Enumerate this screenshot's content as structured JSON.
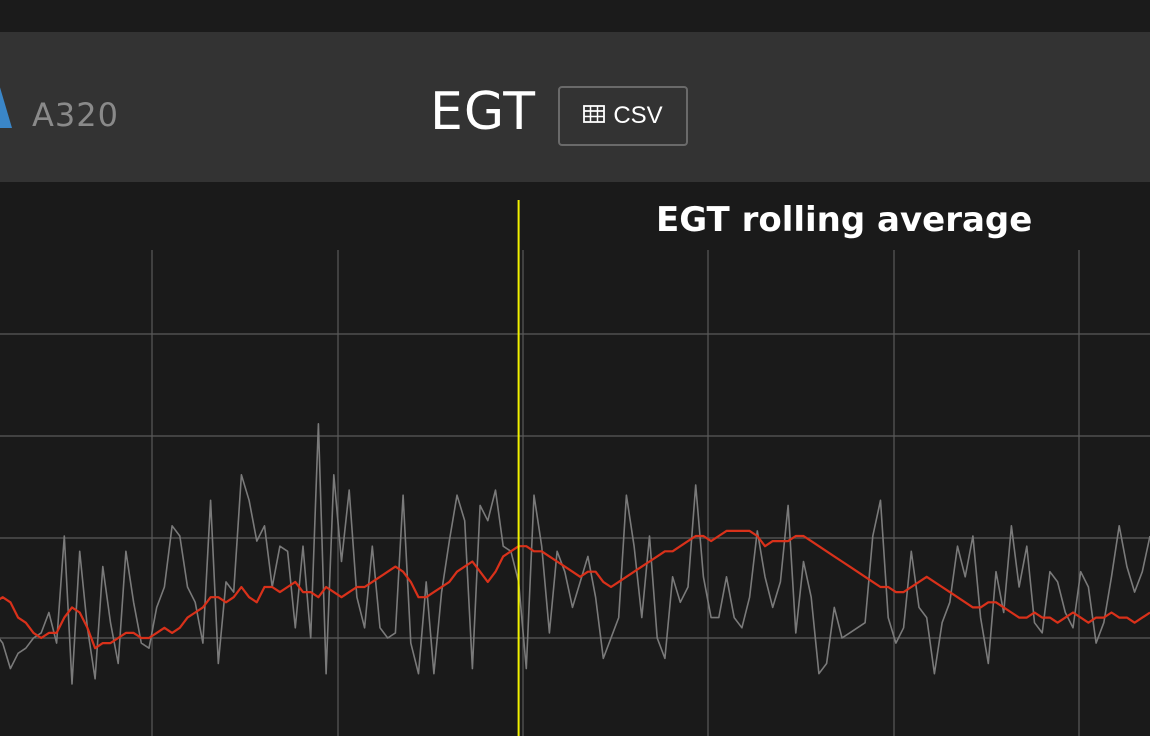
{
  "header": {
    "model": "A320",
    "title": "EGT",
    "csv_label": "CSV",
    "csv_icon": "table-icon"
  },
  "colors": {
    "background": "#1a1a1a",
    "header": "#333333",
    "brand": "#3a86c8",
    "raw_series": "#7a7a7a",
    "rolling_series": "#d9311a",
    "cursor": "#f2f200",
    "grid": "#5a5a5a"
  },
  "chart_data": {
    "type": "line",
    "title": "EGT rolling average",
    "grid": true,
    "x": [
      0,
      1,
      2,
      3,
      4,
      5,
      6,
      7,
      8,
      9,
      10,
      11,
      12,
      13,
      14,
      15,
      16,
      17,
      18,
      19,
      20,
      21,
      22,
      23,
      24,
      25,
      26,
      27,
      28,
      29,
      30,
      31,
      32,
      33,
      34,
      35,
      36,
      37,
      38,
      39,
      40,
      41,
      42,
      43,
      44,
      45,
      46,
      47,
      48,
      49,
      50,
      51,
      52,
      53,
      54,
      55,
      56,
      57,
      58,
      59,
      60,
      61,
      62,
      63,
      64,
      65,
      66,
      67,
      68,
      69,
      70,
      71,
      72,
      73,
      74,
      75,
      76,
      77,
      78,
      79,
      80,
      81,
      82,
      83,
      84,
      85,
      86,
      87,
      88,
      89,
      90,
      91,
      92,
      93,
      94,
      95,
      96,
      97,
      98,
      99,
      100,
      101,
      102,
      103,
      104,
      105,
      106,
      107,
      108,
      109,
      110,
      111,
      112,
      113,
      114,
      115,
      116,
      117,
      118,
      119,
      120,
      121,
      122,
      123,
      124,
      125,
      126,
      127,
      128,
      129,
      130,
      131,
      132,
      133,
      134,
      135,
      136,
      137,
      138,
      139,
      140,
      141,
      142,
      143,
      144,
      145,
      146,
      147,
      148,
      149,
      150
    ],
    "xlim": [
      0,
      150
    ],
    "ylim": [
      0,
      100
    ],
    "cursor_x": 68,
    "series": [
      {
        "values": [
          21,
          19,
          14,
          17,
          18,
          20,
          21,
          25,
          19,
          40,
          11,
          37,
          22,
          12,
          34,
          23,
          15,
          37,
          27,
          19,
          18,
          26,
          30,
          42,
          40,
          30,
          27,
          19,
          47,
          15,
          31,
          29,
          52,
          47,
          39,
          42,
          30,
          38,
          37,
          22,
          38,
          20,
          62,
          13,
          52,
          35,
          49,
          28,
          22,
          38,
          22,
          20,
          21,
          48,
          19,
          13,
          31,
          13,
          29,
          39,
          48,
          43,
          14,
          46,
          43,
          49,
          38,
          37,
          31,
          14,
          48,
          38,
          21,
          37,
          33,
          26,
          31,
          36,
          28,
          16,
          20,
          24,
          48,
          38,
          24,
          40,
          20,
          16,
          32,
          27,
          30,
          50,
          32,
          24,
          24,
          32,
          24,
          22,
          28,
          41,
          32,
          26,
          31,
          46,
          21,
          35,
          28,
          13,
          15,
          26,
          20,
          21,
          22,
          23,
          40,
          47,
          24,
          19,
          22,
          37,
          26,
          24,
          13,
          23,
          27,
          38,
          32,
          40,
          24,
          15,
          33,
          25,
          42,
          30,
          38,
          23,
          21,
          33,
          31,
          25,
          22,
          33,
          30,
          19,
          23,
          32,
          42,
          34,
          29,
          33,
          40
        ]
      },
      {
        "values": [
          27,
          28,
          27,
          24,
          23,
          21,
          20,
          21,
          21,
          24,
          26,
          25,
          22,
          18,
          19,
          19,
          20,
          21,
          21,
          20,
          20,
          21,
          22,
          21,
          22,
          24,
          25,
          26,
          28,
          28,
          27,
          28,
          30,
          28,
          27,
          30,
          30,
          29,
          30,
          31,
          29,
          29,
          28,
          30,
          29,
          28,
          29,
          30,
          30,
          31,
          32,
          33,
          34,
          33,
          31,
          28,
          28,
          29,
          30,
          31,
          33,
          34,
          35,
          33,
          31,
          33,
          36,
          37,
          38,
          38,
          37,
          37,
          36,
          35,
          34,
          33,
          32,
          33,
          33,
          31,
          30,
          31,
          32,
          33,
          34,
          35,
          36,
          37,
          37,
          38,
          39,
          40,
          40,
          39,
          40,
          41,
          41,
          41,
          41,
          40,
          38,
          39,
          39,
          39,
          40,
          40,
          39,
          38,
          37,
          36,
          35,
          34,
          33,
          32,
          31,
          30,
          30,
          29,
          29,
          30,
          31,
          32,
          31,
          30,
          29,
          28,
          27,
          26,
          26,
          27,
          27,
          26,
          25,
          24,
          24,
          25,
          24,
          24,
          23,
          24,
          25,
          24,
          23,
          24,
          24,
          25,
          24,
          24,
          23,
          24,
          25
        ]
      }
    ]
  }
}
